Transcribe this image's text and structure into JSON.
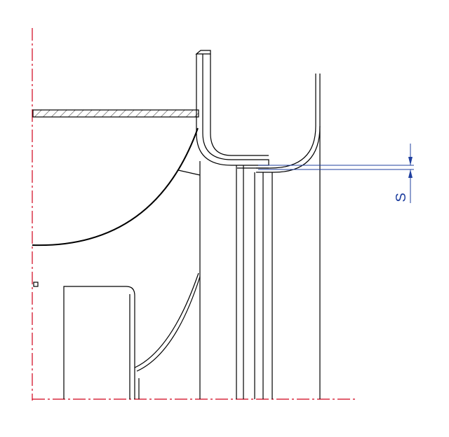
{
  "dimension_label": "S"
}
